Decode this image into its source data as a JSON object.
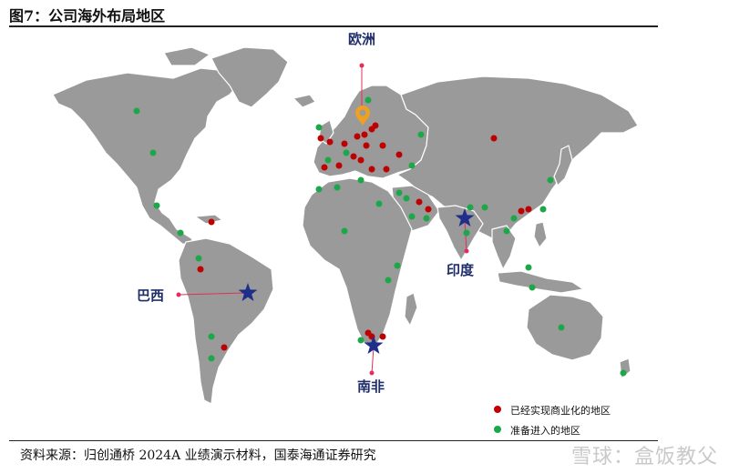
{
  "title": "图7：公司海外布局地区",
  "source": "资料来源：归创通桥 2024A 业绩演示材料，国泰海通证券研究",
  "watermark": "雪球：盒饭教父",
  "regions": {
    "europe": "欧洲",
    "brazil": "巴西",
    "india": "印度",
    "south_africa": "南非"
  },
  "legend": {
    "commercialized": "已经实现商业化的地区",
    "entering": "准备进入的地区"
  },
  "colors": {
    "land": "#9a9a9a",
    "commercialized": "#c00000",
    "entering": "#1aa84a",
    "star": "#1f2e8a",
    "leader": "#e0305a",
    "pin": "#f0a020",
    "label": "#1f2e6b"
  },
  "icons": {
    "hub_marker": "star-icon",
    "europe_marker": "location-pin-icon"
  }
}
